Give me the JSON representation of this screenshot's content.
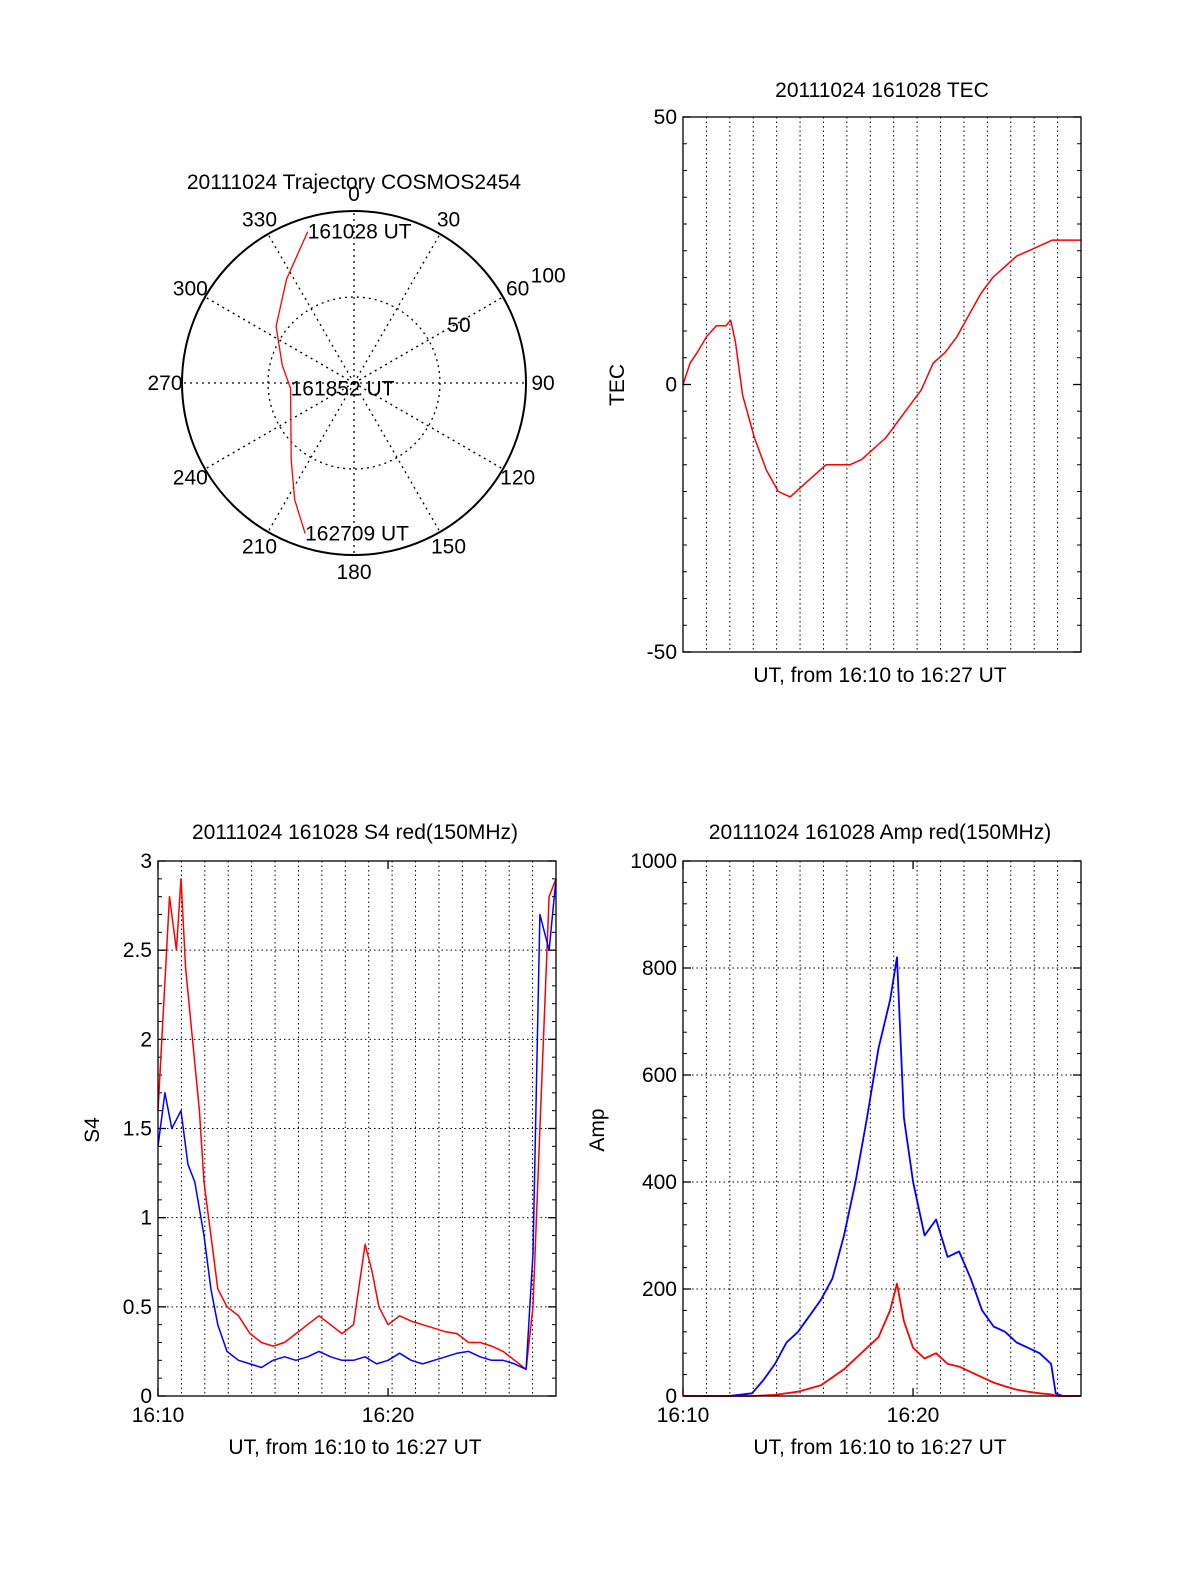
{
  "colors": {
    "red": "#ff0000",
    "blue": "#0000ff",
    "axis": "#000000"
  },
  "chart_data": [
    {
      "type": "polar",
      "title": "20111024 Trajectory COSMOS2454",
      "angle_labels": [
        "0",
        "30",
        "60",
        "90",
        "120",
        "150",
        "180",
        "210",
        "240",
        "270",
        "300",
        "330"
      ],
      "radius_labels": [
        "50",
        "100"
      ],
      "rlim": [
        0,
        100
      ],
      "series": [
        {
          "color": "red",
          "points": [
            {
              "az": 343,
              "r": 92
            },
            {
              "az": 327,
              "r": 72
            },
            {
              "az": 306,
              "r": 56
            },
            {
              "az": 284,
              "r": 43
            },
            {
              "az": 265,
              "r": 37
            },
            {
              "az": 241,
              "r": 42
            },
            {
              "az": 219,
              "r": 58
            },
            {
              "az": 207,
              "r": 76
            },
            {
              "az": 198,
              "r": 92
            }
          ]
        }
      ],
      "annotations": [
        {
          "text": "161028 UT",
          "az": 343,
          "r": 92
        },
        {
          "text": "161852 UT",
          "az": 265,
          "r": 37
        },
        {
          "text": "162709 UT",
          "az": 198,
          "r": 92
        }
      ]
    },
    {
      "type": "line",
      "title": "20111024 161028 TEC",
      "xlabel": "UT, from 16:10 to 16:27 UT",
      "ylabel": "TEC",
      "xlim": [
        0,
        16.7
      ],
      "ylim": [
        -50,
        50
      ],
      "yticks": [
        "-50",
        "0",
        "50"
      ],
      "grid": "vertical dotted",
      "series": [
        {
          "color": "red",
          "x": [
            0,
            0.3,
            0.6,
            1.0,
            1.4,
            1.8,
            2.0,
            2.2,
            2.5,
            3.0,
            3.5,
            4.0,
            4.5,
            5.0,
            5.5,
            6.0,
            6.5,
            7.0,
            7.5,
            8.0,
            8.5,
            9.0,
            9.5,
            10.0,
            10.5,
            11.0,
            11.5,
            12.0,
            12.5,
            13.0,
            13.5,
            14.0,
            14.5,
            15.0,
            15.5,
            16.0,
            16.7
          ],
          "y": [
            0,
            4,
            6,
            9,
            11,
            11,
            12,
            8,
            -2,
            -10,
            -16,
            -20,
            -21,
            -19,
            -17,
            -15,
            -15,
            -15,
            -14,
            -12,
            -10,
            -7,
            -4,
            -1,
            4,
            6,
            9,
            13,
            17,
            20,
            22,
            24,
            25,
            26,
            27,
            27,
            27
          ]
        }
      ]
    },
    {
      "type": "line",
      "title": "20111024 161028 S4 red(150MHz)",
      "xlabel": "UT, from 16:10 to 16:27 UT",
      "ylabel": "S4",
      "xlim": [
        0,
        17.3
      ],
      "ylim": [
        0,
        3
      ],
      "xticks": [
        {
          "value": 0,
          "label": "16:10"
        },
        {
          "value": 10,
          "label": "16:20"
        }
      ],
      "yticks": [
        "0",
        "0.5",
        "1",
        "1.5",
        "2",
        "2.5",
        "3"
      ],
      "grid": "dotted",
      "series": [
        {
          "color": "red",
          "x": [
            0,
            0.5,
            0.8,
            1.0,
            1.2,
            1.5,
            1.8,
            2.0,
            2.3,
            2.6,
            3.0,
            3.5,
            4.0,
            4.5,
            5.0,
            5.5,
            6.0,
            6.5,
            7.0,
            7.5,
            8.0,
            8.5,
            9.0,
            9.3,
            9.6,
            10.0,
            10.5,
            11.0,
            11.5,
            12.0,
            12.5,
            13.0,
            13.5,
            14.0,
            14.5,
            15.0,
            15.5,
            16.0,
            16.3,
            16.6,
            17.0,
            17.3
          ],
          "y": [
            1.6,
            2.8,
            2.5,
            2.9,
            2.4,
            2.0,
            1.6,
            1.2,
            0.9,
            0.6,
            0.5,
            0.45,
            0.35,
            0.3,
            0.28,
            0.3,
            0.35,
            0.4,
            0.45,
            0.4,
            0.35,
            0.4,
            0.85,
            0.7,
            0.5,
            0.4,
            0.45,
            0.42,
            0.4,
            0.38,
            0.36,
            0.35,
            0.3,
            0.3,
            0.28,
            0.25,
            0.2,
            0.15,
            0.5,
            1.5,
            2.8,
            2.9
          ]
        },
        {
          "color": "blue",
          "x": [
            0,
            0.3,
            0.6,
            1.0,
            1.3,
            1.6,
            2.0,
            2.3,
            2.6,
            3.0,
            3.5,
            4.0,
            4.5,
            5.0,
            5.5,
            6.0,
            6.5,
            7.0,
            7.5,
            8.0,
            8.5,
            9.0,
            9.5,
            10.0,
            10.5,
            11.0,
            11.5,
            12.0,
            12.5,
            13.0,
            13.5,
            14.0,
            14.5,
            15.0,
            15.5,
            16.0,
            16.3,
            16.6,
            17.0,
            17.3
          ],
          "y": [
            1.4,
            1.7,
            1.5,
            1.6,
            1.3,
            1.2,
            0.9,
            0.6,
            0.4,
            0.25,
            0.2,
            0.18,
            0.16,
            0.2,
            0.22,
            0.2,
            0.22,
            0.25,
            0.22,
            0.2,
            0.2,
            0.22,
            0.18,
            0.2,
            0.24,
            0.2,
            0.18,
            0.2,
            0.22,
            0.24,
            0.25,
            0.22,
            0.2,
            0.2,
            0.18,
            0.15,
            0.8,
            2.7,
            2.5,
            2.9
          ]
        }
      ]
    },
    {
      "type": "line",
      "title": "20111024 161028 Amp red(150MHz)",
      "xlabel": "UT, from 16:10 to 16:27 UT",
      "ylabel": "Amp",
      "xlim": [
        0,
        17.3
      ],
      "ylim": [
        0,
        1000
      ],
      "xticks": [
        {
          "value": 0,
          "label": "16:10"
        },
        {
          "value": 10,
          "label": "16:20"
        }
      ],
      "yticks": [
        "0",
        "200",
        "400",
        "600",
        "800",
        "1000"
      ],
      "grid": "dotted",
      "series": [
        {
          "color": "blue",
          "x": [
            0,
            2.0,
            3.0,
            3.5,
            4.0,
            4.5,
            5.0,
            5.5,
            6.0,
            6.5,
            7.0,
            7.5,
            8.0,
            8.5,
            9.0,
            9.3,
            9.6,
            10.0,
            10.5,
            11.0,
            11.5,
            12.0,
            12.5,
            13.0,
            13.5,
            14.0,
            14.5,
            15.0,
            15.5,
            16.0,
            16.2,
            16.5,
            17.3
          ],
          "y": [
            0,
            0,
            5,
            30,
            60,
            100,
            120,
            150,
            180,
            220,
            300,
            400,
            520,
            650,
            740,
            820,
            520,
            400,
            300,
            330,
            260,
            270,
            220,
            160,
            130,
            120,
            100,
            90,
            80,
            60,
            5,
            0,
            0
          ]
        },
        {
          "color": "red",
          "x": [
            0,
            3.0,
            4.0,
            5.0,
            6.0,
            6.5,
            7.0,
            7.5,
            8.0,
            8.5,
            9.0,
            9.3,
            9.6,
            10.0,
            10.5,
            11.0,
            11.5,
            12.0,
            12.5,
            13.0,
            13.5,
            14.0,
            14.5,
            15.0,
            15.5,
            16.0,
            16.3,
            17.3
          ],
          "y": [
            0,
            0,
            2,
            8,
            20,
            35,
            50,
            70,
            90,
            110,
            160,
            210,
            140,
            90,
            70,
            80,
            60,
            55,
            45,
            35,
            25,
            18,
            12,
            8,
            5,
            3,
            0,
            0
          ]
        }
      ]
    }
  ]
}
